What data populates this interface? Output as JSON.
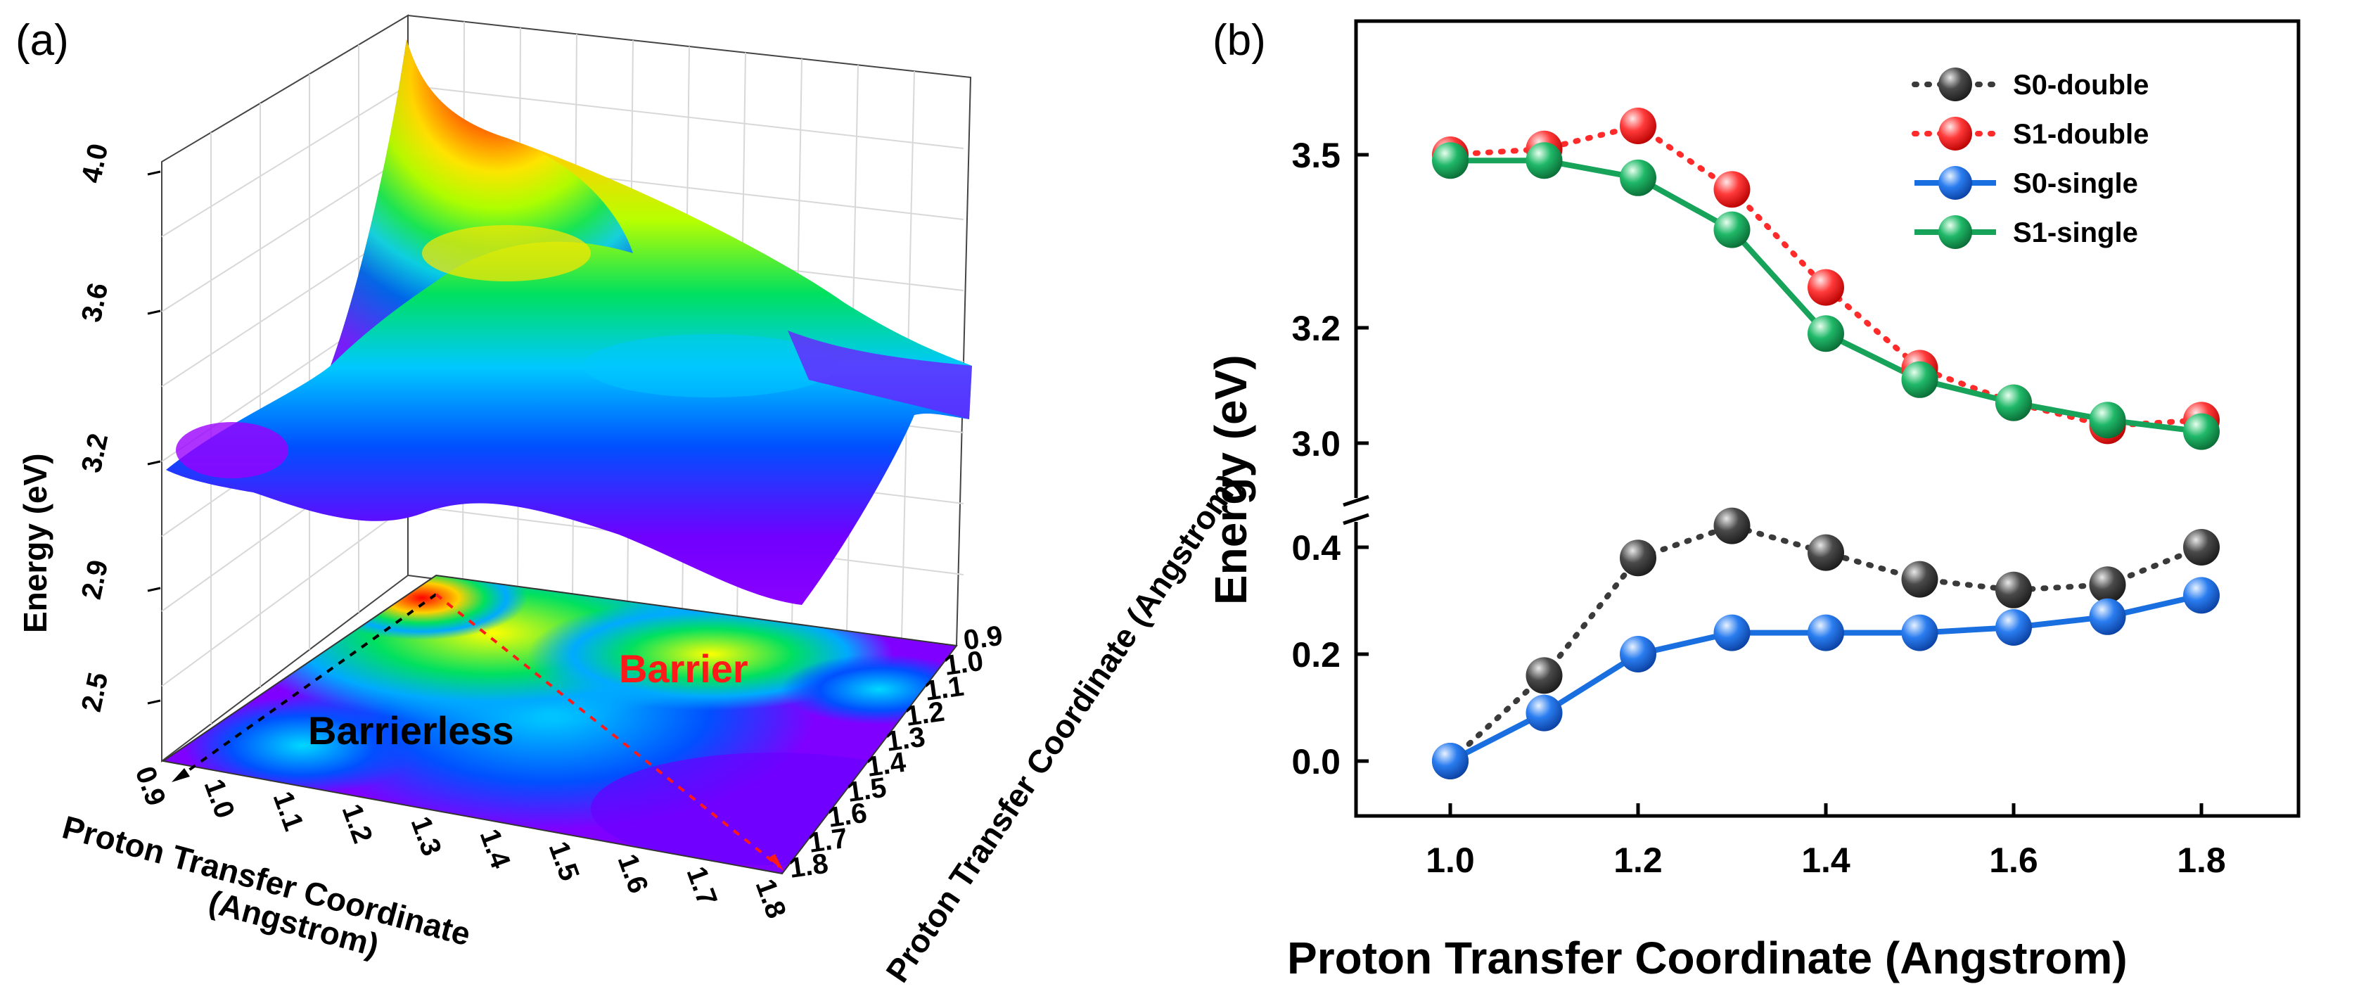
{
  "panel_a": {
    "letter": "(a)",
    "annotations": {
      "barrier": "Barrier",
      "barrierless": "Barrierless"
    },
    "colors": {
      "barrier": "#ff1a1a",
      "barrierless": "#000000"
    }
  },
  "panel_b": {
    "letter": "(b)"
  },
  "chart_data": [
    {
      "type": "surface3d",
      "zlabel": "Energy (eV)",
      "xlabel_line1": "Proton Transfer Coordinate",
      "xlabel_line2": "(Angstrom)",
      "ylabel": "Proton Transfer Coordinate (Angstrom)",
      "z_ticks": [
        "2.5",
        "2.9",
        "3.2",
        "3.6",
        "4.0"
      ],
      "x_ticks": [
        "0.9",
        "1.0",
        "1.1",
        "1.2",
        "1.3",
        "1.4",
        "1.5",
        "1.6",
        "1.7",
        "1.8"
      ],
      "y_ticks": [
        "0.9",
        "1.0",
        "1.1",
        "1.2",
        "1.3",
        "1.4",
        "1.5",
        "1.6",
        "1.7",
        "1.8"
      ],
      "colormap": [
        "#8a00ff",
        "#0050ff",
        "#00c8ff",
        "#00e060",
        "#b4ff00",
        "#ffff00",
        "#ff9600",
        "#ff0000"
      ]
    },
    {
      "type": "line",
      "xlabel": "Proton Transfer Coordinate (Angstrom)",
      "ylabel": "Energy (eV)",
      "x": [
        1.0,
        1.1,
        1.2,
        1.3,
        1.4,
        1.5,
        1.6,
        1.7,
        1.8
      ],
      "x_ticks": [
        "1.0",
        "1.2",
        "1.4",
        "1.6",
        "1.8"
      ],
      "y_ticks_upper": [
        "3.0",
        "3.2",
        "3.5"
      ],
      "y_ticks_lower": [
        "0.0",
        "0.2",
        "0.4"
      ],
      "axis_break": true,
      "legend_position": "top-right",
      "series": [
        {
          "name": "S0-double",
          "color": "#3a3a3a",
          "line": "dotted",
          "values": [
            0.0,
            0.16,
            0.38,
            0.44,
            0.39,
            0.34,
            0.32,
            0.33,
            0.4
          ]
        },
        {
          "name": "S1-double",
          "color": "#ff2a2a",
          "line": "dotted",
          "values": [
            3.5,
            3.51,
            3.55,
            3.44,
            3.27,
            3.13,
            3.07,
            3.03,
            3.04
          ]
        },
        {
          "name": "S0-single",
          "color": "#1a6fe0",
          "line": "solid",
          "values": [
            0.0,
            0.09,
            0.2,
            0.24,
            0.24,
            0.24,
            0.25,
            0.27,
            0.31
          ]
        },
        {
          "name": "S1-single",
          "color": "#17a35a",
          "line": "solid",
          "values": [
            3.49,
            3.49,
            3.46,
            3.37,
            3.19,
            3.11,
            3.07,
            3.04,
            3.02
          ]
        }
      ]
    }
  ]
}
